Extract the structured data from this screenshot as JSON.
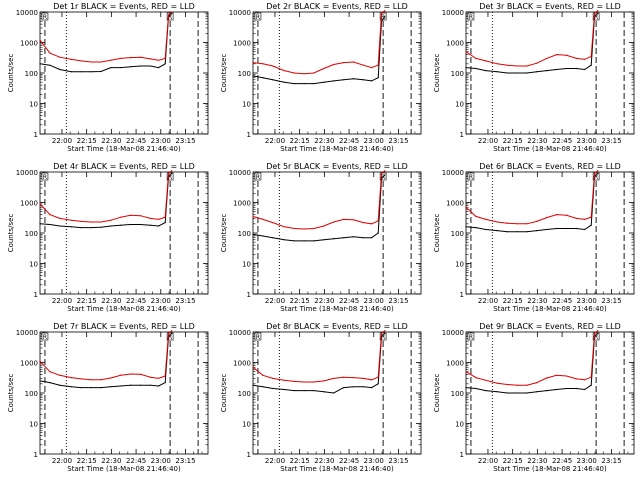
{
  "colors": {
    "events": "#000000",
    "lld": "#e00000",
    "axes": "#000000",
    "background": "#ffffff"
  },
  "shared": {
    "ylabel": "Counts/sec",
    "xlabel": "Start Time (18-Mar-08 21:46:40)",
    "xticks": [
      "22:00",
      "22:15",
      "22:30",
      "22:45",
      "23:00",
      "23:15"
    ],
    "yticks": [
      "1",
      "10",
      "100",
      "1000",
      "10000"
    ],
    "marker_label": "R",
    "ylim": [
      1,
      10000
    ],
    "yscale": "log",
    "xlim_minutes_after_start": [
      0,
      102
    ]
  },
  "chart_data": [
    {
      "type": "line",
      "title": "Det 1r BLACK = Events, RED = LLD",
      "x": [
        0,
        6,
        12,
        19,
        25,
        31,
        37,
        43,
        49,
        55,
        61,
        67,
        72,
        76,
        78,
        80
      ],
      "series": [
        {
          "values": [
            200,
            180,
            130,
            110,
            110,
            110,
            112,
            150,
            150,
            160,
            170,
            170,
            150,
            200,
            7000,
            9000
          ]
        },
        {
          "values": [
            1200,
            450,
            330,
            280,
            250,
            230,
            230,
            260,
            300,
            320,
            330,
            290,
            260,
            300,
            8000,
            10000
          ]
        }
      ],
      "vlines": {
        "dashed": [
          3,
          79,
          96
        ],
        "dotted": [
          16
        ]
      }
    },
    {
      "type": "line",
      "title": "Det 2r BLACK = Events, RED = LLD",
      "x": [
        0,
        6,
        12,
        19,
        25,
        31,
        37,
        43,
        49,
        55,
        61,
        67,
        72,
        76,
        78,
        80
      ],
      "series": [
        {
          "values": [
            80,
            70,
            60,
            50,
            45,
            45,
            45,
            50,
            55,
            60,
            65,
            60,
            55,
            70,
            5000,
            7000
          ]
        },
        {
          "values": [
            220,
            200,
            170,
            120,
            100,
            95,
            100,
            140,
            190,
            220,
            230,
            180,
            150,
            180,
            9000,
            11000
          ]
        }
      ],
      "vlines": {
        "dashed": [
          3,
          79,
          96
        ],
        "dotted": [
          16
        ]
      }
    },
    {
      "type": "line",
      "title": "Det 3r BLACK = Events, RED = LLD",
      "x": [
        0,
        6,
        12,
        19,
        25,
        31,
        37,
        43,
        49,
        55,
        61,
        67,
        72,
        76,
        78,
        80
      ],
      "series": [
        {
          "values": [
            150,
            140,
            120,
            110,
            100,
            100,
            100,
            110,
            120,
            130,
            140,
            140,
            130,
            180,
            7000,
            9000
          ]
        },
        {
          "values": [
            500,
            300,
            250,
            200,
            180,
            170,
            170,
            210,
            300,
            400,
            380,
            300,
            280,
            350,
            9000,
            11000
          ]
        }
      ],
      "vlines": {
        "dashed": [
          3,
          79,
          96
        ],
        "dotted": [
          16
        ]
      }
    },
    {
      "type": "line",
      "title": "Det 4r BLACK = Events, RED = LLD",
      "x": [
        0,
        6,
        12,
        19,
        25,
        31,
        37,
        43,
        49,
        55,
        61,
        67,
        72,
        76,
        78,
        80
      ],
      "series": [
        {
          "values": [
            200,
            190,
            170,
            160,
            150,
            150,
            155,
            170,
            180,
            190,
            190,
            180,
            170,
            220,
            7000,
            9000
          ]
        },
        {
          "values": [
            900,
            400,
            300,
            260,
            240,
            230,
            230,
            260,
            330,
            380,
            370,
            300,
            280,
            330,
            9000,
            11000
          ]
        }
      ],
      "vlines": {
        "dashed": [
          3,
          79,
          96
        ],
        "dotted": [
          16
        ]
      }
    },
    {
      "type": "line",
      "title": "Det 5r BLACK = Events, RED = LLD",
      "x": [
        0,
        6,
        12,
        19,
        25,
        31,
        37,
        43,
        49,
        55,
        61,
        67,
        72,
        76,
        78,
        80
      ],
      "series": [
        {
          "values": [
            90,
            80,
            70,
            60,
            55,
            55,
            55,
            60,
            65,
            70,
            75,
            70,
            70,
            100,
            6000,
            8000
          ]
        },
        {
          "values": [
            350,
            280,
            220,
            160,
            140,
            135,
            140,
            170,
            230,
            280,
            270,
            220,
            200,
            250,
            9000,
            11000
          ]
        }
      ],
      "vlines": {
        "dashed": [
          3,
          79,
          96
        ],
        "dotted": [
          16
        ]
      }
    },
    {
      "type": "line",
      "title": "Det 6r BLACK = Events, RED = LLD",
      "x": [
        0,
        6,
        12,
        19,
        25,
        31,
        37,
        43,
        49,
        55,
        61,
        67,
        72,
        76,
        78,
        80
      ],
      "series": [
        {
          "values": [
            160,
            150,
            130,
            120,
            110,
            110,
            110,
            120,
            130,
            140,
            140,
            140,
            130,
            180,
            7000,
            9000
          ]
        },
        {
          "values": [
            700,
            350,
            280,
            230,
            210,
            200,
            200,
            240,
            320,
            400,
            380,
            300,
            280,
            330,
            9000,
            11000
          ]
        }
      ],
      "vlines": {
        "dashed": [
          3,
          79,
          96
        ],
        "dotted": [
          16
        ]
      }
    },
    {
      "type": "line",
      "title": "Det 7r BLACK = Events, RED = LLD",
      "x": [
        0,
        6,
        12,
        19,
        25,
        31,
        37,
        43,
        49,
        55,
        61,
        67,
        72,
        76,
        78,
        80
      ],
      "series": [
        {
          "values": [
            250,
            220,
            180,
            160,
            150,
            150,
            150,
            160,
            170,
            180,
            180,
            180,
            170,
            220,
            7000,
            9000
          ]
        },
        {
          "values": [
            1100,
            500,
            380,
            320,
            290,
            270,
            270,
            310,
            380,
            420,
            410,
            330,
            300,
            360,
            9000,
            11000
          ]
        }
      ],
      "vlines": {
        "dashed": [
          3,
          79,
          96
        ],
        "dotted": [
          16
        ]
      }
    },
    {
      "type": "line",
      "title": "Det 8r BLACK = Events, RED = LLD",
      "x": [
        0,
        6,
        12,
        19,
        25,
        31,
        37,
        43,
        49,
        55,
        61,
        67,
        72,
        76,
        78,
        80
      ],
      "series": [
        {
          "values": [
            180,
            160,
            140,
            130,
            120,
            120,
            120,
            110,
            100,
            150,
            160,
            160,
            150,
            200,
            7000,
            9000
          ]
        },
        {
          "values": [
            700,
            380,
            300,
            260,
            240,
            230,
            230,
            250,
            300,
            330,
            320,
            300,
            270,
            330,
            9000,
            11000
          ]
        }
      ],
      "vlines": {
        "dashed": [
          3,
          79,
          96
        ],
        "dotted": [
          16
        ]
      }
    },
    {
      "type": "line",
      "title": "Det 9r BLACK = Events, RED = LLD",
      "x": [
        0,
        6,
        12,
        19,
        25,
        31,
        37,
        43,
        49,
        55,
        61,
        67,
        72,
        76,
        78,
        80
      ],
      "series": [
        {
          "values": [
            150,
            140,
            120,
            110,
            100,
            100,
            100,
            110,
            120,
            130,
            140,
            140,
            130,
            180,
            7000,
            9000
          ]
        },
        {
          "values": [
            500,
            320,
            260,
            210,
            190,
            180,
            180,
            220,
            310,
            380,
            360,
            290,
            270,
            330,
            9000,
            11000
          ]
        }
      ],
      "vlines": {
        "dashed": [
          3,
          79,
          96
        ],
        "dotted": [
          16
        ]
      }
    }
  ]
}
